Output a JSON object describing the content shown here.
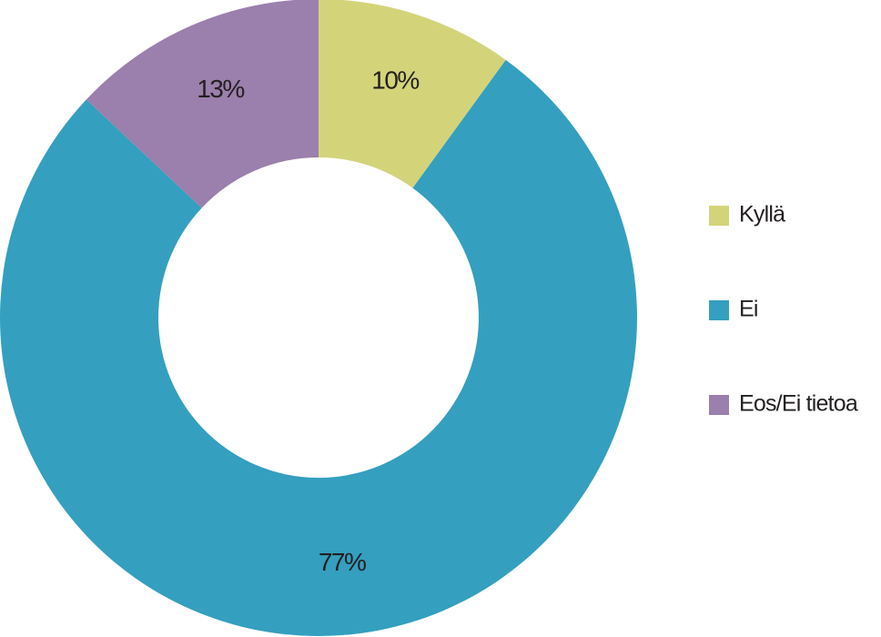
{
  "chart_data": {
    "type": "donut",
    "categories": [
      "Kyllä",
      "Ei",
      "Eos/Ei tietoa"
    ],
    "values": [
      10,
      77,
      13
    ],
    "value_labels": [
      "10%",
      "77%",
      "13%"
    ],
    "colors": [
      "#d3d47a",
      "#349fbf",
      "#9b7fac"
    ],
    "legend": "right"
  }
}
